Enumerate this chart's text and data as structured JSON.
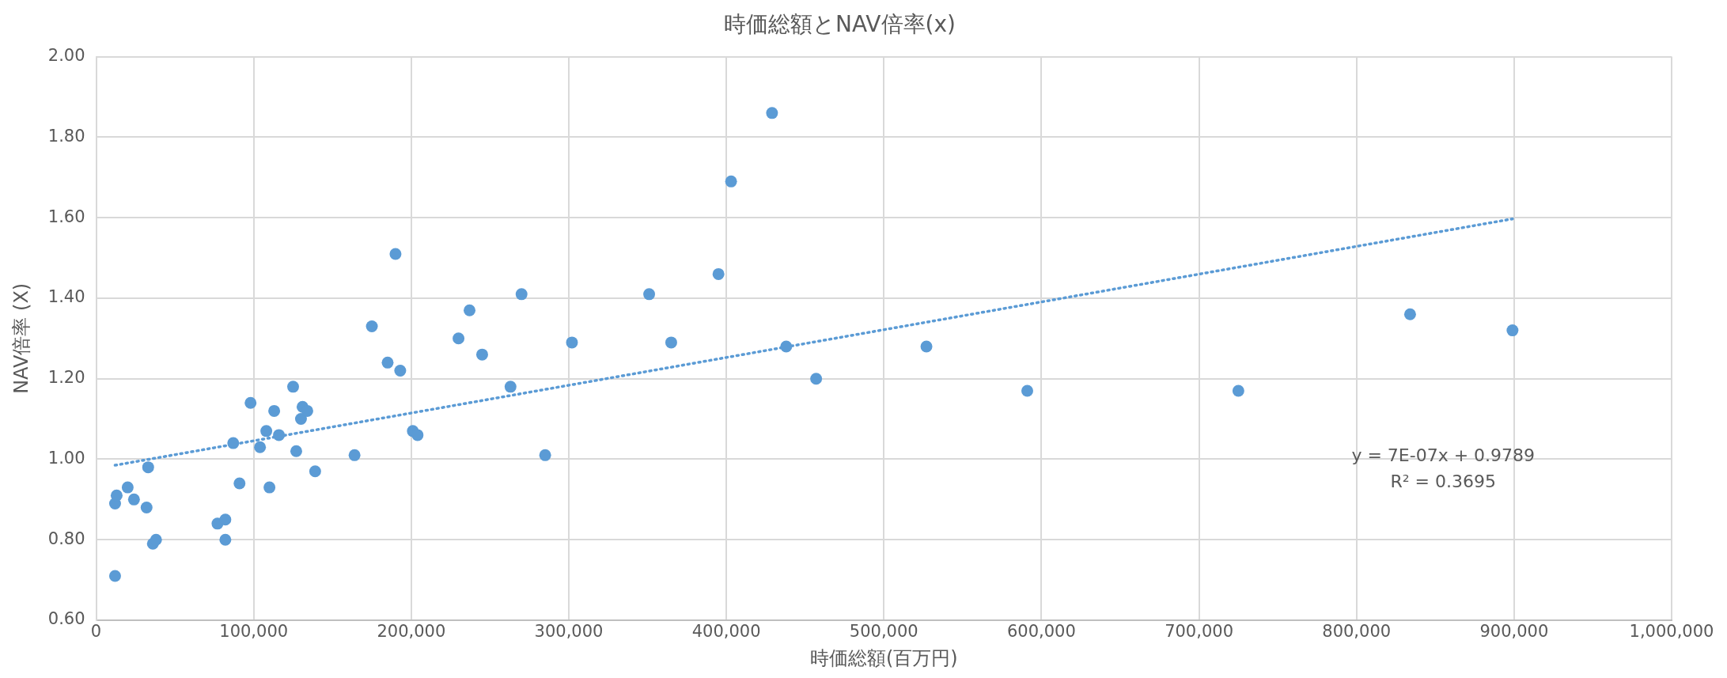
{
  "chart_data": {
    "type": "scatter",
    "title": "時価総額とNAV倍率(x)",
    "xlabel": "時価総額(百万円)",
    "ylabel": "NAV倍率 (X)",
    "xlim": [
      0,
      1000000
    ],
    "xticks": [
      0,
      {
        "value": 100000,
        "label": "100,000"
      },
      {
        "value": 200000,
        "label": "200,000"
      },
      {
        "value": 300000,
        "label": "300,000"
      },
      {
        "value": 400000,
        "label": "400,000"
      },
      {
        "value": 500000,
        "label": "500,000"
      },
      {
        "value": 600000,
        "label": "600,000"
      },
      {
        "value": 700000,
        "label": "700,000"
      },
      {
        "value": 800000,
        "label": "800,000"
      },
      {
        "value": 900000,
        "label": "900,000"
      },
      {
        "value": 1000000,
        "label": "1,000,000"
      }
    ],
    "ylim": [
      0.6,
      2.0
    ],
    "yticks": [
      {
        "value": 0.6,
        "label": "0.60"
      },
      {
        "value": 0.8,
        "label": "0.80"
      },
      {
        "value": 1.0,
        "label": "1.00"
      },
      {
        "value": 1.2,
        "label": "1.20"
      },
      {
        "value": 1.4,
        "label": "1.40"
      },
      {
        "value": 1.6,
        "label": "1.60"
      },
      {
        "value": 1.8,
        "label": "1.80"
      },
      {
        "value": 2.0,
        "label": "2.00"
      }
    ],
    "grid": true,
    "legend": false,
    "marker": "circle",
    "annotations": [
      "y = 7E-07x + 0.9789",
      "R² = 0.3695"
    ],
    "series": [
      {
        "type": "scatter",
        "color": "#5b9bd5",
        "x": [
          12000,
          12000,
          13000,
          20000,
          24000,
          32000,
          33000,
          36000,
          38000,
          77000,
          82000,
          82000,
          87000,
          91000,
          98000,
          104000,
          108000,
          110000,
          113000,
          116000,
          125000,
          127000,
          130000,
          131000,
          134000,
          139000,
          164000,
          175000,
          185000,
          190000,
          193000,
          201000,
          204000,
          230000,
          237000,
          245000,
          263000,
          270000,
          285000,
          302000,
          351000,
          365000,
          395000,
          403000,
          429000,
          438000,
          457000,
          527000,
          591000,
          725000,
          834000,
          899000
        ],
        "values": [
          0.71,
          0.89,
          0.91,
          0.93,
          0.9,
          0.88,
          0.98,
          0.79,
          0.8,
          0.84,
          0.85,
          0.8,
          1.04,
          0.94,
          1.14,
          1.03,
          1.07,
          0.93,
          1.12,
          1.06,
          1.18,
          1.02,
          1.1,
          1.13,
          1.12,
          0.97,
          1.01,
          1.33,
          1.24,
          1.51,
          1.22,
          1.07,
          1.06,
          1.3,
          1.37,
          1.26,
          1.18,
          1.41,
          1.01,
          1.29,
          1.41,
          1.29,
          1.46,
          1.69,
          1.86,
          1.28,
          1.2,
          1.28,
          1.17,
          1.17,
          1.36,
          1.32
        ]
      },
      {
        "type": "line",
        "color": "#5b9bd5",
        "line_style": "dotted",
        "marker": "none",
        "x": [
          12000,
          899000
        ],
        "values": [
          0.985,
          1.597
        ]
      }
    ]
  }
}
